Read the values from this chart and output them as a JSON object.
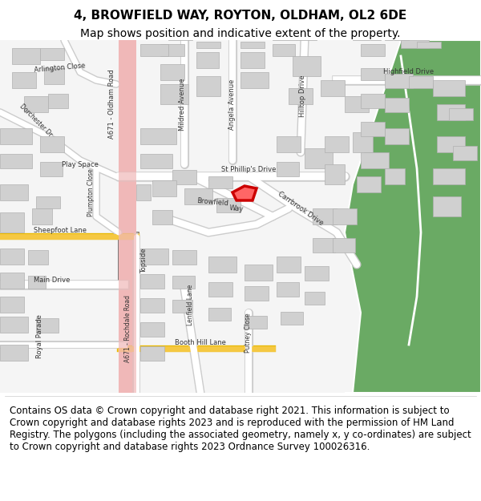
{
  "title_line1": "4, BROWFIELD WAY, ROYTON, OLDHAM, OL2 6DE",
  "title_line2": "Map shows position and indicative extent of the property.",
  "footer_text": "Contains OS data © Crown copyright and database right 2021. This information is subject to Crown copyright and database rights 2023 and is reproduced with the permission of HM Land Registry. The polygons (including the associated geometry, namely x, y co-ordinates) are subject to Crown copyright and database rights 2023 Ordnance Survey 100026316.",
  "background_color": "#ffffff",
  "map_bg_color": "#f5f5f5",
  "road_color": "#ffffff",
  "major_road_color": "#f0b8b8",
  "building_color": "#d8d8d8",
  "green_area_color": "#6aaa64",
  "highlight_road_color": "#f5c842",
  "property_fill": "#ff9999",
  "property_outline": "#cc0000",
  "title_fontsize": 11,
  "subtitle_fontsize": 10,
  "footer_fontsize": 8.5
}
